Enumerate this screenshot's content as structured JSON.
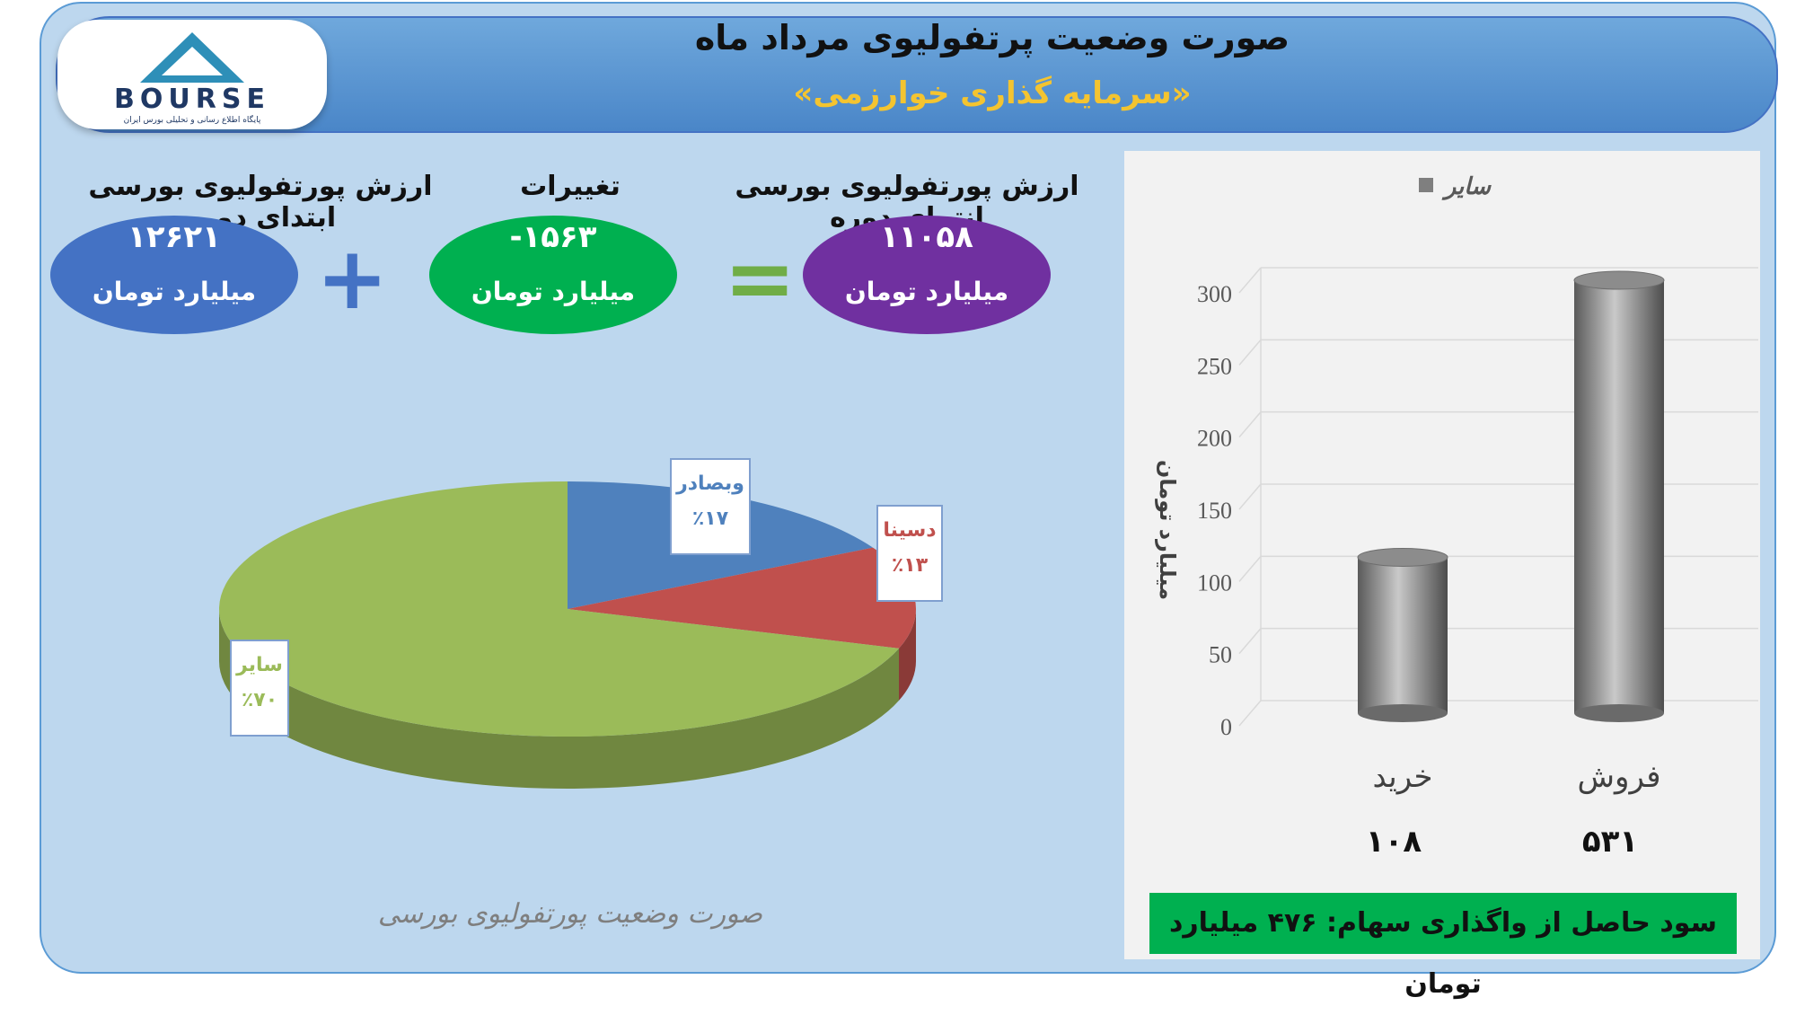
{
  "header": {
    "title": "صورت وضعیت پرتفولیوی مرداد ماه",
    "subtitle": "«سرمایه گذاری خوارزمی»"
  },
  "logo": {
    "word": "BOURSE",
    "tagline": "پایگاه اطلاع رسانی و تحلیلی بورس ایران"
  },
  "summary": {
    "start": {
      "label": "ارزش پورتفولیوی بورسی ابتدای دوره",
      "value": "۱۲۶۲۱",
      "unit": "میلیارد تومان",
      "color": "#4472c4"
    },
    "change": {
      "label": "تغییرات",
      "value": "-۱۵۶۳",
      "unit": "میلیارد تومان",
      "color": "#00b050"
    },
    "end": {
      "label": "ارزش پورتفولیوی بورسی انتهای دوره",
      "value": "۱۱۰۵۸",
      "unit": "میلیارد تومان",
      "color": "#7030a0"
    },
    "plus_color": "#4472c4",
    "equals_color": "#70ad47"
  },
  "chart_data": [
    {
      "type": "pie",
      "title": "صورت وضعیت پورتفولیوی بورسی",
      "slices": [
        {
          "name": "وبصادر",
          "value": 17,
          "label": "٪۱۷",
          "color": "#4f81bd"
        },
        {
          "name": "دسینا",
          "value": 13,
          "label": "٪۱۳",
          "color": "#c0504d"
        },
        {
          "name": "سایر",
          "value": 70,
          "label": "٪۷۰",
          "color": "#9bbb59"
        }
      ]
    },
    {
      "type": "bar",
      "legend": "سایر",
      "ylabel": "میلیارد تومان",
      "ylim": [
        0,
        300
      ],
      "yticks": [
        0,
        50,
        100,
        150,
        200,
        250,
        300
      ],
      "categories": [
        "خرید",
        "فروش"
      ],
      "values": [
        108,
        531
      ],
      "value_labels": [
        "۱۰۸",
        "۵۳۱"
      ],
      "color": "#7f7f7f"
    }
  ],
  "footer": {
    "profit": "سود حاصل از واگذاری سهام: ۴۷۶ میلیارد تومان"
  }
}
